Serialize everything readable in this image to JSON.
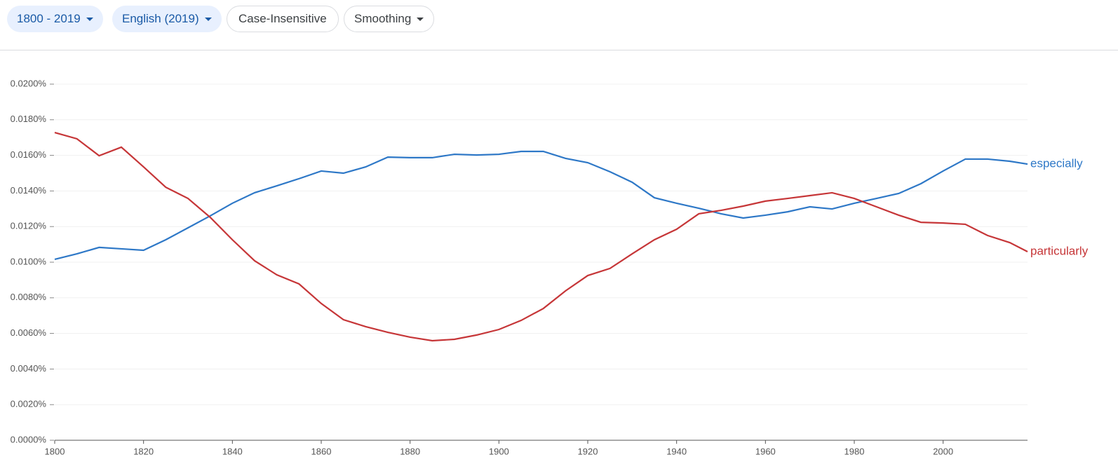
{
  "controls": {
    "year_range": "1800 - 2019",
    "corpus": "English (2019)",
    "case": "Case-Insensitive",
    "smoothing": "Smoothing"
  },
  "chart_data": {
    "type": "line",
    "x": [
      1800,
      1805,
      1810,
      1815,
      1820,
      1825,
      1830,
      1835,
      1840,
      1845,
      1850,
      1855,
      1860,
      1865,
      1870,
      1875,
      1880,
      1885,
      1890,
      1895,
      1900,
      1905,
      1910,
      1915,
      1920,
      1925,
      1930,
      1935,
      1940,
      1945,
      1950,
      1955,
      1960,
      1965,
      1970,
      1975,
      1980,
      1985,
      1990,
      1995,
      2000,
      2005,
      2010,
      2015,
      2019
    ],
    "series": [
      {
        "name": "especially",
        "color": "#2e78c7",
        "values": [
          0.01016,
          0.01047,
          0.01083,
          0.01075,
          0.01067,
          0.01126,
          0.01193,
          0.0126,
          0.01331,
          0.0139,
          0.01429,
          0.01469,
          0.01512,
          0.015,
          0.01535,
          0.0159,
          0.01587,
          0.01587,
          0.01606,
          0.01602,
          0.01606,
          0.01622,
          0.01622,
          0.01583,
          0.01559,
          0.01508,
          0.01449,
          0.01362,
          0.01331,
          0.01303,
          0.01272,
          0.01248,
          0.01264,
          0.01283,
          0.01311,
          0.01299,
          0.01331,
          0.01358,
          0.01386,
          0.01441,
          0.01512,
          0.01579,
          0.01579,
          0.01567,
          0.01551
        ]
      },
      {
        "name": "particularly",
        "color": "#c63638",
        "values": [
          0.01728,
          0.01693,
          0.01598,
          0.01646,
          0.01535,
          0.01421,
          0.01358,
          0.01252,
          0.01126,
          0.01008,
          0.00929,
          0.00878,
          0.00768,
          0.00677,
          0.00638,
          0.00606,
          0.00579,
          0.00559,
          0.00567,
          0.00591,
          0.00622,
          0.00673,
          0.0074,
          0.00839,
          0.00925,
          0.00965,
          0.01047,
          0.01126,
          0.01185,
          0.01272,
          0.01291,
          0.01315,
          0.01343,
          0.01358,
          0.01374,
          0.0139,
          0.01358,
          0.01311,
          0.01264,
          0.01224,
          0.0122,
          0.01213,
          0.0115,
          0.0111,
          0.01059
        ]
      }
    ],
    "xlim": [
      1800,
      2019
    ],
    "xticks": [
      1800,
      1820,
      1840,
      1860,
      1880,
      1900,
      1920,
      1940,
      1960,
      1980,
      2000
    ],
    "ylim": [
      0,
      0.02
    ],
    "yticks": [
      {
        "value": 0,
        "label": "0.0000%"
      },
      {
        "value": 0.002,
        "label": "0.0020%"
      },
      {
        "value": 0.004,
        "label": "0.0040%"
      },
      {
        "value": 0.006,
        "label": "0.0060%"
      },
      {
        "value": 0.008,
        "label": "0.0080%"
      },
      {
        "value": 0.01,
        "label": "0.0100%"
      },
      {
        "value": 0.012,
        "label": "0.0120%"
      },
      {
        "value": 0.014,
        "label": "0.0140%"
      },
      {
        "value": 0.016,
        "label": "0.0160%"
      },
      {
        "value": 0.018,
        "label": "0.0180%"
      },
      {
        "value": 0.02,
        "label": "0.0200%"
      }
    ],
    "grid": true
  }
}
